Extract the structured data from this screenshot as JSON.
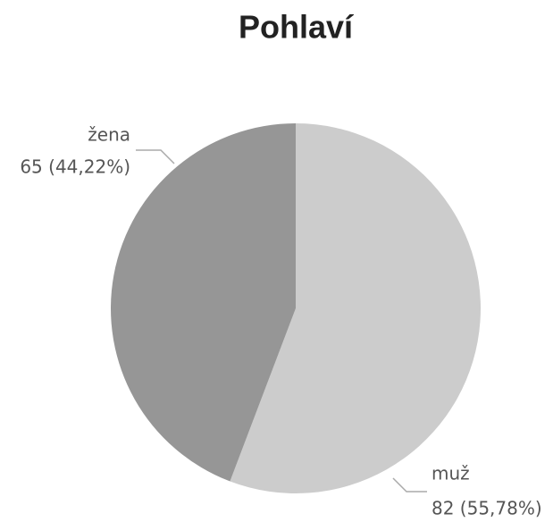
{
  "chart_data": {
    "type": "pie",
    "title": "Pohlaví",
    "categories": [
      "muž",
      "žena"
    ],
    "values": [
      82,
      65
    ],
    "value_labels": [
      "82 (55,78%)",
      "65 (44,22%)"
    ],
    "colors": [
      "#cccccc",
      "#969696"
    ]
  }
}
